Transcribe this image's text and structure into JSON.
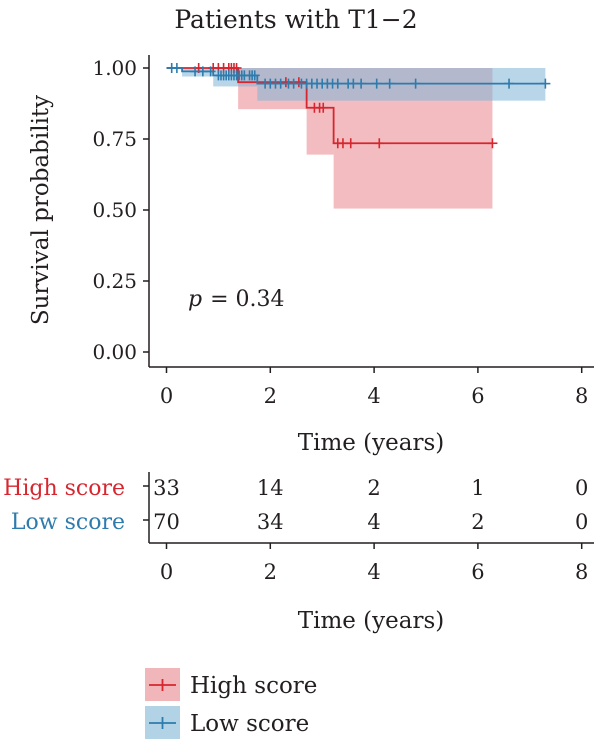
{
  "chart_data": {
    "type": "line",
    "subtype": "kaplan-meier",
    "title": "Patients with T1−2",
    "xlabel": "Time (years)",
    "ylabel": "Survival probability",
    "xlim": [
      -0.3,
      8.3
    ],
    "ylim": [
      0,
      1
    ],
    "x_ticks": [
      "0",
      "2",
      "4",
      "6",
      "8"
    ],
    "y_ticks": [
      "0.00",
      "0.25",
      "0.50",
      "0.75",
      "1.00"
    ],
    "annotation": {
      "p_label": "p",
      "p_value": "= 0.34"
    },
    "grid": false,
    "series": [
      {
        "name": "High score",
        "color": "#d7262f",
        "fill": "#e8858c",
        "steps": [
          [
            0,
            1.0
          ],
          [
            1.38,
            1.0
          ],
          [
            1.38,
            0.95
          ],
          [
            2.7,
            0.95
          ],
          [
            2.7,
            0.86
          ],
          [
            3.22,
            0.86
          ],
          [
            3.22,
            0.735
          ],
          [
            6.28,
            0.735
          ]
        ],
        "ci": [
          [
            0,
            1.0,
            1.0
          ],
          [
            1.38,
            0.855,
            1.0
          ],
          [
            2.7,
            0.695,
            1.0
          ],
          [
            3.22,
            0.505,
            1.0
          ],
          [
            6.28,
            0.505,
            1.0
          ]
        ],
        "censor_x": [
          0.62,
          0.9,
          1.0,
          1.1,
          1.2,
          1.25,
          1.3,
          1.35,
          2.3,
          2.55,
          2.85,
          2.95,
          3.02,
          3.3,
          3.4,
          3.55,
          4.1,
          6.28
        ]
      },
      {
        "name": "Low score",
        "color": "#2e7bad",
        "fill": "#7fb4d6",
        "steps": [
          [
            0,
            1.0
          ],
          [
            0.3,
            1.0
          ],
          [
            0.3,
            0.988
          ],
          [
            0.9,
            0.988
          ],
          [
            0.9,
            0.974
          ],
          [
            1.75,
            0.974
          ],
          [
            1.75,
            0.945
          ],
          [
            7.3,
            0.945
          ]
        ],
        "ci": [
          [
            0,
            1.0,
            1.0
          ],
          [
            0.3,
            0.97,
            1.0
          ],
          [
            0.9,
            0.935,
            1.0
          ],
          [
            1.75,
            0.885,
            1.0
          ],
          [
            7.3,
            0.885,
            1.0
          ]
        ],
        "censor_x": [
          0.1,
          0.2,
          0.55,
          0.7,
          0.85,
          1.0,
          1.05,
          1.1,
          1.15,
          1.2,
          1.25,
          1.3,
          1.35,
          1.4,
          1.45,
          1.5,
          1.6,
          1.65,
          1.7,
          1.9,
          2.0,
          2.1,
          2.2,
          2.35,
          2.45,
          2.6,
          2.7,
          2.8,
          2.9,
          3.0,
          3.1,
          3.2,
          3.3,
          3.5,
          3.6,
          3.75,
          4.05,
          4.3,
          4.8,
          6.6,
          7.3
        ]
      }
    ],
    "risk_table": {
      "times": [
        0,
        2,
        4,
        6,
        8
      ],
      "x_ticks": [
        "0",
        "2",
        "4",
        "6",
        "8"
      ],
      "xlabel": "Time (years)",
      "rows": [
        {
          "label": "High score",
          "color": "#d7262f",
          "counts": [
            "33",
            "14",
            "2",
            "1",
            "0"
          ]
        },
        {
          "label": "Low score",
          "color": "#2e7bad",
          "counts": [
            "70",
            "34",
            "4",
            "2",
            "0"
          ]
        }
      ]
    },
    "legend": {
      "position": "bottom",
      "items": [
        {
          "label": "High score",
          "color": "#d7262f",
          "fill": "#e8858c"
        },
        {
          "label": "Low score",
          "color": "#2e7bad",
          "fill": "#7fb4d6"
        }
      ]
    }
  }
}
